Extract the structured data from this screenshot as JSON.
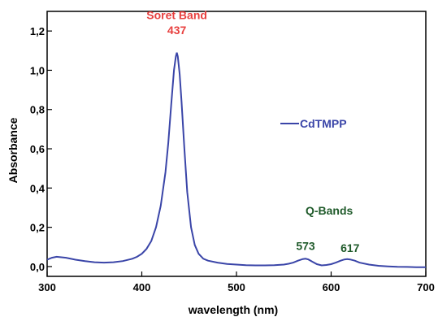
{
  "chart_data": {
    "type": "line",
    "xlabel": "wavelength (nm)",
    "ylabel": "Absorbance",
    "xlim": [
      300,
      700
    ],
    "ylim": [
      -0.05,
      1.3
    ],
    "x_ticks": [
      300,
      400,
      500,
      600,
      700
    ],
    "x_tick_labels": [
      "300",
      "400",
      "500",
      "600",
      "700"
    ],
    "y_ticks": [
      0.0,
      0.2,
      0.4,
      0.6,
      0.8,
      1.0,
      1.2
    ],
    "y_tick_labels": [
      "0,0",
      "0,2",
      "0,4",
      "0,6",
      "0,8",
      "1,0",
      "1,2"
    ],
    "grid": false,
    "legend": {
      "placement": "right",
      "entries": [
        "CdTMPP"
      ]
    },
    "series": [
      {
        "name": "CdTMPP",
        "color": "#3a45a8",
        "x": [
          300,
          305,
          310,
          320,
          330,
          340,
          350,
          360,
          370,
          380,
          390,
          395,
          400,
          405,
          410,
          415,
          420,
          425,
          428,
          431,
          434,
          436,
          437,
          438,
          440,
          442,
          445,
          448,
          452,
          456,
          460,
          465,
          470,
          480,
          490,
          500,
          510,
          520,
          530,
          540,
          550,
          555,
          560,
          565,
          570,
          573,
          576,
          580,
          585,
          590,
          595,
          600,
          605,
          610,
          614,
          617,
          620,
          625,
          630,
          640,
          650,
          660,
          670,
          680,
          690,
          700
        ],
        "y": [
          0.035,
          0.045,
          0.05,
          0.045,
          0.035,
          0.028,
          0.022,
          0.02,
          0.022,
          0.028,
          0.04,
          0.05,
          0.065,
          0.09,
          0.13,
          0.2,
          0.31,
          0.48,
          0.63,
          0.82,
          1.0,
          1.07,
          1.09,
          1.07,
          0.98,
          0.84,
          0.6,
          0.38,
          0.2,
          0.11,
          0.065,
          0.04,
          0.03,
          0.02,
          0.013,
          0.01,
          0.007,
          0.006,
          0.006,
          0.007,
          0.01,
          0.014,
          0.02,
          0.03,
          0.038,
          0.04,
          0.036,
          0.025,
          0.012,
          0.006,
          0.008,
          0.012,
          0.02,
          0.03,
          0.036,
          0.038,
          0.036,
          0.03,
          0.02,
          0.01,
          0.004,
          0.001,
          -0.001,
          -0.002,
          -0.003,
          -0.003
        ]
      }
    ],
    "annotations": [
      {
        "id": "soret-title",
        "text": "Soret Band",
        "x": 437,
        "y": 1.26,
        "color": "#e8403f"
      },
      {
        "id": "soret-peak",
        "text": "437",
        "x": 437,
        "y": 1.185,
        "color": "#e8403f"
      },
      {
        "id": "q-bands",
        "text": "Q-Bands",
        "x": 598,
        "y": 0.265,
        "color": "#1f5a2a"
      },
      {
        "id": "q-peak-573",
        "text": "573",
        "x": 573,
        "y": 0.085,
        "color": "#1f5a2a"
      },
      {
        "id": "q-peak-617",
        "text": "617",
        "x": 620,
        "y": 0.075,
        "color": "#1f5a2a"
      }
    ]
  }
}
